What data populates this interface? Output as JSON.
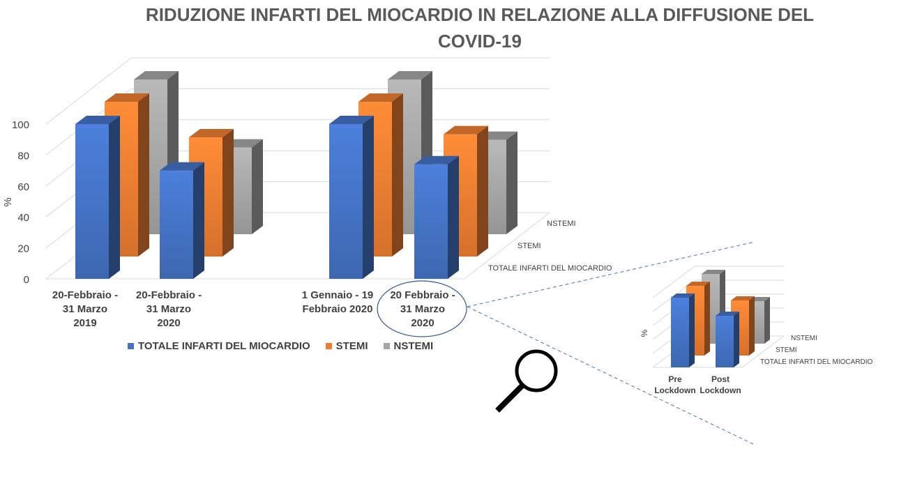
{
  "title_line1": "RIDUZIONE INFARTI DEL MIOCARDIO IN RELAZIONE ALLA DIFFUSIONE DEL",
  "title_line2": "COVID-19",
  "colors": {
    "total": "#4472C4",
    "stemi": "#ED7D31",
    "nstemi": "#A5A5A5"
  },
  "chart_data": [
    {
      "type": "bar",
      "title": "RIDUZIONE INFARTI DEL MIOCARDIO IN RELAZIONE ALLA DIFFUSIONE DEL COVID-19",
      "ylabel": "%",
      "ylim": [
        0,
        100
      ],
      "yticks": [
        "0",
        "20",
        "40",
        "60",
        "80",
        "100"
      ],
      "categories": [
        [
          "20-Febbraio -",
          "31 Marzo",
          "2019"
        ],
        [
          "20-Febbraio -",
          "31 Marzo",
          "2020"
        ],
        [
          "1 Gennaio - 19",
          "Febbraio 2020"
        ],
        [
          "20 Febbraio -",
          "31 Marzo",
          "2020"
        ]
      ],
      "depth_labels": [
        "TOTALE INFARTI DEL MIOCARDIO",
        "STEMI",
        "NSTEMI"
      ],
      "series": [
        {
          "name": "TOTALE INFARTI DEL MIOCARDIO",
          "values": [
            100,
            70,
            100,
            74
          ]
        },
        {
          "name": "STEMI",
          "values": [
            100,
            77,
            100,
            79
          ]
        },
        {
          "name": "NSTEMI",
          "values": [
            100,
            56,
            100,
            61
          ]
        }
      ],
      "legend": "bottom",
      "grid": true
    },
    {
      "type": "bar",
      "ylabel": "%",
      "categories": [
        [
          "Pre",
          "Lockdown"
        ],
        [
          "Post",
          "Lockdown"
        ]
      ],
      "depth_labels": [
        "TOTALE INFARTI DEL MIOCARDIO",
        "STEMI",
        "NSTEMI"
      ],
      "series": [
        {
          "name": "TOTALE INFARTI DEL MIOCARDIO",
          "values": [
            100,
            74
          ]
        },
        {
          "name": "STEMI",
          "values": [
            100,
            79
          ]
        },
        {
          "name": "NSTEMI",
          "values": [
            100,
            61
          ]
        }
      ],
      "grid": true
    }
  ],
  "legend_items": [
    {
      "label": "TOTALE INFARTI DEL MIOCARDIO",
      "color": "#4472C4"
    },
    {
      "label": "STEMI",
      "color": "#ED7D31"
    },
    {
      "label": "NSTEMI",
      "color": "#A5A5A5"
    }
  ],
  "magnifier_icon": "magnifier-icon"
}
